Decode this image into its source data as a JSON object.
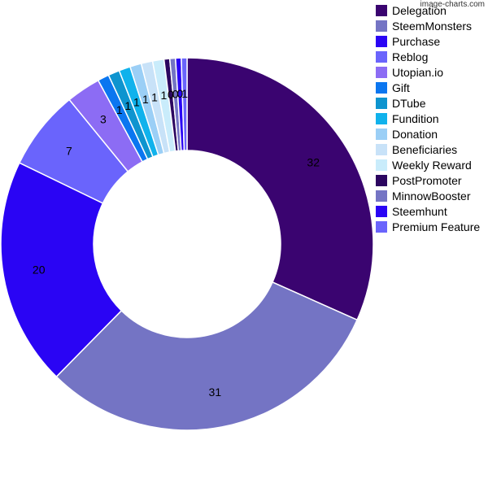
{
  "watermark": "image-charts.com",
  "chart_data": {
    "type": "pie",
    "donut": true,
    "legend_position": "right",
    "series": [
      {
        "name": "Delegation",
        "value": 32,
        "label": "32",
        "color": "#3a0470"
      },
      {
        "name": "SteemMonsters",
        "value": 31,
        "label": "31",
        "color": "#7474c4"
      },
      {
        "name": "Purchase",
        "value": 20,
        "label": "20",
        "color": "#2a04f4"
      },
      {
        "name": "Reblog",
        "value": 7,
        "label": "7",
        "color": "#6a64fc"
      },
      {
        "name": "Utopian.io",
        "value": 3,
        "label": "3",
        "color": "#8c6cf4"
      },
      {
        "name": "Gift",
        "value": 1,
        "label": "1",
        "color": "#0b76f0"
      },
      {
        "name": "DTube",
        "value": 1,
        "label": "1",
        "color": "#0e94cf"
      },
      {
        "name": "Fundition",
        "value": 1,
        "label": "1",
        "color": "#10b2ec"
      },
      {
        "name": "Donation",
        "value": 1,
        "label": "1",
        "color": "#9bcff6"
      },
      {
        "name": "Beneficiaries",
        "value": 1,
        "label": "1",
        "color": "#c8e2f8"
      },
      {
        "name": "Weekly Reward",
        "value": 1,
        "label": "1",
        "color": "#c9ecfb"
      },
      {
        "name": "PostPromoter",
        "value": 0.5,
        "label": "0",
        "color": "#2c0660"
      },
      {
        "name": "MinnowBooster",
        "value": 0.5,
        "label": "0",
        "color": "#7474c4"
      },
      {
        "name": "Steemhunt",
        "value": 0.5,
        "label": "0",
        "color": "#2a04f4"
      },
      {
        "name": "Premium Feature",
        "value": 0.5,
        "label": "1",
        "color": "#6a64fc"
      }
    ]
  }
}
